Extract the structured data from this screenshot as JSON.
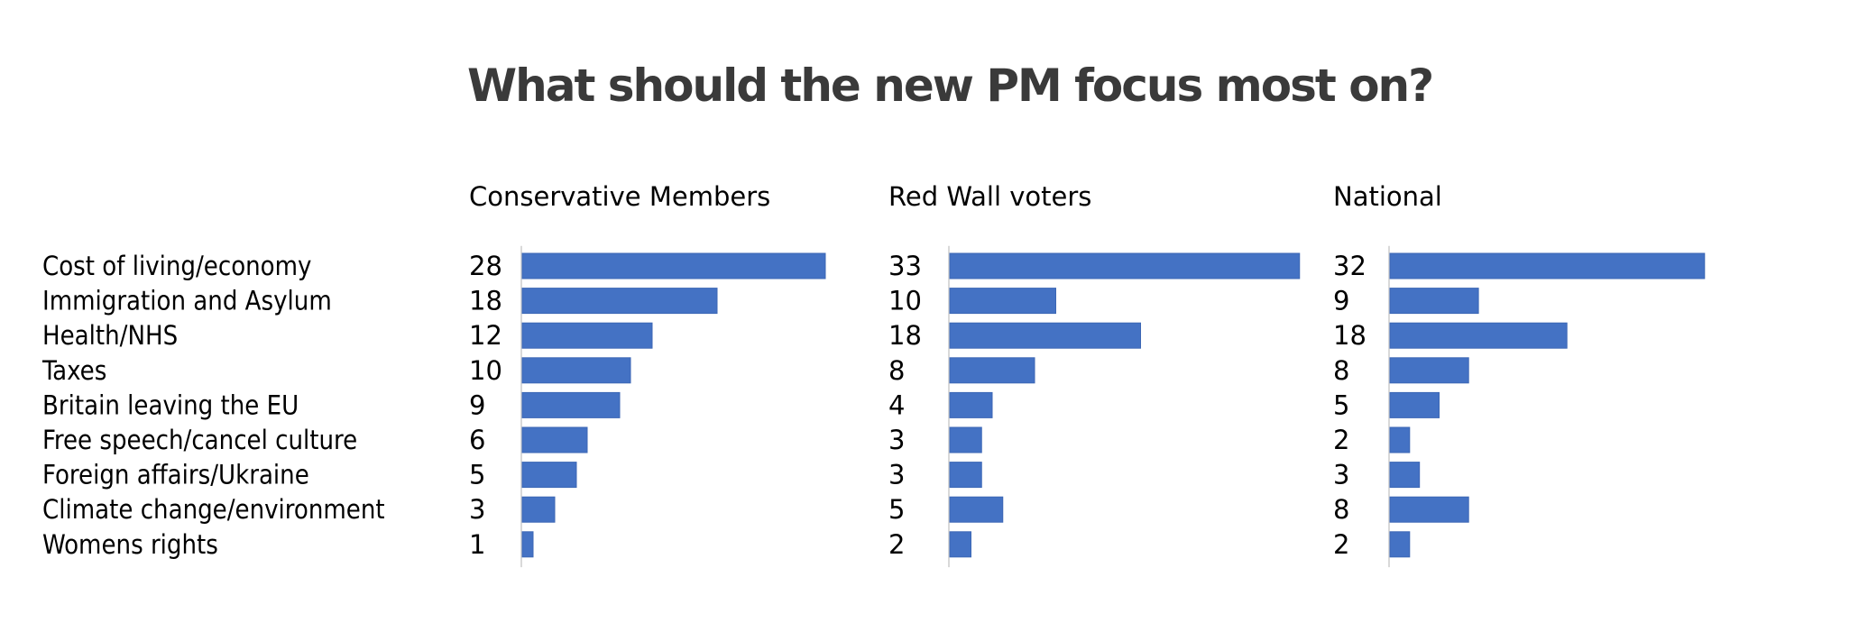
{
  "chart_data": {
    "type": "bar",
    "orientation": "horizontal",
    "title": "What should the new PM focus most on?",
    "categories": [
      "Cost of living/economy",
      "Immigration and Asylum",
      "Health/NHS",
      "Taxes",
      "Britain leaving the EU",
      "Free speech/cancel culture",
      "Foreign affairs/Ukraine",
      "Climate change/environment",
      "Womens rights"
    ],
    "series": [
      {
        "name": "Conservative Members",
        "values": [
          28,
          18,
          12,
          10,
          9,
          6,
          5,
          3,
          1
        ]
      },
      {
        "name": "Red Wall voters",
        "values": [
          33,
          10,
          18,
          8,
          4,
          3,
          3,
          5,
          2
        ]
      },
      {
        "name": "National",
        "values": [
          32,
          9,
          18,
          8,
          5,
          2,
          3,
          8,
          2
        ]
      }
    ],
    "xlabel": "",
    "ylabel": "",
    "grid": false,
    "data_labels": true,
    "bar_color": "#4472c4",
    "layout": "small-multiples"
  }
}
